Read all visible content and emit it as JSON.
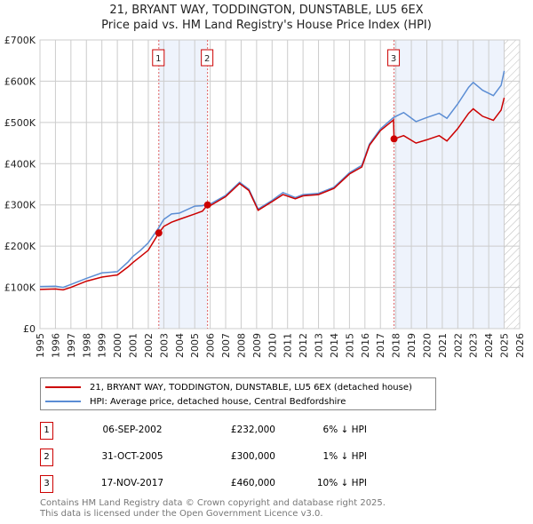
{
  "chart_data": {
    "type": "line",
    "title": "21, BRYANT WAY, TODDINGTON, DUNSTABLE, LU5 6EX",
    "subtitle": "Price paid vs. HM Land Registry's House Price Index (HPI)",
    "xlim": [
      1995,
      2026
    ],
    "ylim": [
      0,
      700000
    ],
    "x_ticks": [
      "1995",
      "1996",
      "1997",
      "1998",
      "1999",
      "2000",
      "2001",
      "2002",
      "2003",
      "2004",
      "2005",
      "2006",
      "2007",
      "2008",
      "2009",
      "2010",
      "2011",
      "2012",
      "2013",
      "2014",
      "2015",
      "2016",
      "2017",
      "2018",
      "2019",
      "2020",
      "2021",
      "2022",
      "2023",
      "2024",
      "2025",
      "2026"
    ],
    "y_ticks": [
      {
        "v": 0,
        "label": "£0"
      },
      {
        "v": 100000,
        "label": "£100K"
      },
      {
        "v": 200000,
        "label": "£200K"
      },
      {
        "v": 300000,
        "label": "£300K"
      },
      {
        "v": 400000,
        "label": "£400K"
      },
      {
        "v": 500000,
        "label": "£500K"
      },
      {
        "v": 600000,
        "label": "£600K"
      },
      {
        "v": 700000,
        "label": "£700K"
      }
    ],
    "grid": true,
    "shaded_ranges": [
      [
        2002.68,
        2005.83
      ],
      [
        2017.88,
        2025.0
      ]
    ],
    "forecast_hatch_from": 2025.0,
    "series": [
      {
        "name": "21, BRYANT WAY, TODDINGTON, DUNSTABLE, LU5 6EX (detached house)",
        "color": "#cc0000",
        "x": [
          1995,
          1996,
          1996.5,
          1997,
          1998,
          1999,
          2000,
          2000.7,
          2001,
          2001.5,
          2002,
          2002.68,
          2003,
          2003.5,
          2004,
          2005,
          2005.5,
          2005.83,
          2006,
          2007,
          2007.9,
          2008.5,
          2009.1,
          2010,
          2010.7,
          2011.5,
          2012,
          2013,
          2014,
          2015,
          2015.8,
          2016.3,
          2017,
          2017.85,
          2017.88,
          2018.5,
          2019.3,
          2020,
          2020.8,
          2021.3,
          2022,
          2022.7,
          2023,
          2023.6,
          2024.3,
          2024.8,
          2025
        ],
        "y": [
          95000,
          96000,
          94000,
          100000,
          115000,
          125000,
          130000,
          150000,
          160000,
          175000,
          190000,
          232000,
          248000,
          258000,
          265000,
          278000,
          285000,
          300000,
          298000,
          320000,
          352000,
          335000,
          287000,
          308000,
          325000,
          315000,
          322000,
          325000,
          340000,
          375000,
          392000,
          445000,
          480000,
          506000,
          460000,
          468000,
          450000,
          458000,
          468000,
          455000,
          485000,
          522000,
          533000,
          515000,
          505000,
          530000,
          560000
        ]
      },
      {
        "name": "HPI: Average price, detached house, Central Bedfordshire",
        "color": "#5b8dd4",
        "x": [
          1995,
          1996,
          1996.5,
          1997,
          1998,
          1999,
          2000,
          2000.7,
          2001,
          2001.5,
          2002,
          2002.68,
          2003,
          2003.5,
          2004,
          2005,
          2005.5,
          2005.83,
          2006,
          2007,
          2007.9,
          2008.5,
          2009.1,
          2010,
          2010.7,
          2011.5,
          2012,
          2013,
          2014,
          2015,
          2015.8,
          2016.3,
          2017,
          2017.85,
          2018.5,
          2019.3,
          2020,
          2020.8,
          2021.3,
          2022,
          2022.7,
          2023,
          2023.6,
          2024.3,
          2024.8,
          2025
        ],
        "y": [
          102000,
          103000,
          100000,
          107000,
          122000,
          135000,
          138000,
          162000,
          175000,
          190000,
          208000,
          245000,
          265000,
          278000,
          280000,
          297000,
          298000,
          303000,
          302000,
          323000,
          355000,
          338000,
          290000,
          311000,
          330000,
          318000,
          325000,
          328000,
          343000,
          378000,
          396000,
          448000,
          484000,
          512000,
          524000,
          502000,
          512000,
          522000,
          510000,
          545000,
          585000,
          597000,
          578000,
          565000,
          590000,
          625000
        ]
      }
    ],
    "sales": [
      {
        "id": "1",
        "x": 2002.68,
        "y": 232000
      },
      {
        "id": "2",
        "x": 2005.83,
        "y": 300000
      },
      {
        "id": "3",
        "x": 2017.88,
        "y": 460000
      }
    ],
    "legend_position": "below"
  },
  "title_line1": "21, BRYANT WAY, TODDINGTON, DUNSTABLE, LU5 6EX",
  "title_line2": "Price paid vs. HM Land Registry's House Price Index (HPI)",
  "legend": [
    {
      "label": "21, BRYANT WAY, TODDINGTON, DUNSTABLE, LU5 6EX (detached house)",
      "color": "#cc0000"
    },
    {
      "label": "HPI: Average price, detached house, Central Bedfordshire",
      "color": "#5b8dd4"
    }
  ],
  "transactions": [
    {
      "num": "1",
      "date": "06-SEP-2002",
      "price": "£232,000",
      "hpi": "6% ↓ HPI"
    },
    {
      "num": "2",
      "date": "31-OCT-2005",
      "price": "£300,000",
      "hpi": "1% ↓ HPI"
    },
    {
      "num": "3",
      "date": "17-NOV-2017",
      "price": "£460,000",
      "hpi": "10% ↓ HPI"
    }
  ],
  "footer_line1": "Contains HM Land Registry data © Crown copyright and database right 2025.",
  "footer_line2": "This data is licensed under the Open Government Licence v3.0."
}
